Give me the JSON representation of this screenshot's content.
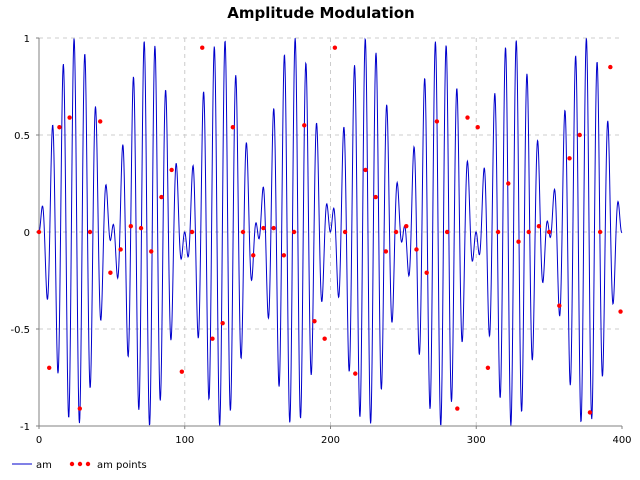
{
  "chart_data": {
    "type": "line",
    "title": "Amplitude Modulation",
    "xlabel": "",
    "ylabel": "",
    "xlim": [
      0,
      400
    ],
    "ylim": [
      -1,
      1
    ],
    "x_ticks": [
      0,
      100,
      200,
      300,
      400
    ],
    "y_ticks": [
      -1,
      -0.5,
      0,
      0.5,
      1
    ],
    "x_tick_labels": [
      "0",
      "100",
      "200",
      "300",
      "400"
    ],
    "y_tick_labels": [
      "-1",
      "-0.5",
      "0",
      "0.5",
      "1"
    ],
    "grid": true,
    "legend_position": "bottom-left",
    "series": [
      {
        "name": "am",
        "kind": "line",
        "color": "#0000cc",
        "formula": "sin(2*pi*t/100) * sin(2*pi*t/7.4)",
        "x_range": [
          0,
          400
        ],
        "samples": 1600
      },
      {
        "name": "am points",
        "kind": "scatter",
        "color": "#ff0000",
        "x_step": 7,
        "x": [
          0,
          7,
          14,
          21,
          28,
          35,
          42,
          49,
          56,
          63,
          70,
          77,
          84,
          91,
          98,
          105,
          112,
          119,
          126,
          133,
          140,
          147,
          154,
          161,
          168,
          175,
          182,
          189,
          196,
          203,
          210,
          217,
          224,
          231,
          238,
          245,
          252,
          259,
          266,
          273,
          280,
          287,
          294,
          301,
          308,
          315,
          322,
          329,
          336,
          343,
          350,
          357,
          364,
          371,
          378,
          385,
          392,
          399
        ],
        "y": [
          0,
          -0.7,
          0.54,
          0.59,
          -0.91,
          0,
          0.57,
          -0.21,
          -0.09,
          0.03,
          0.02,
          -0.1,
          0.18,
          0.32,
          -0.72,
          0,
          0.95,
          -0.55,
          -0.47,
          0.54,
          0,
          -0.12,
          0.02,
          0.02,
          -0.12,
          0,
          0.55,
          -0.46,
          -0.55,
          0.95,
          0,
          -0.73,
          0.32,
          0.18,
          -0.1,
          0,
          0.03,
          -0.09,
          -0.21,
          0.57,
          0,
          -0.91,
          0.59,
          0.54,
          -0.7,
          0,
          0.25,
          -0.05,
          0.0,
          0.03,
          0,
          -0.38,
          0.38,
          0.5,
          -0.93,
          0,
          0.85,
          -0.41
        ]
      }
    ]
  }
}
